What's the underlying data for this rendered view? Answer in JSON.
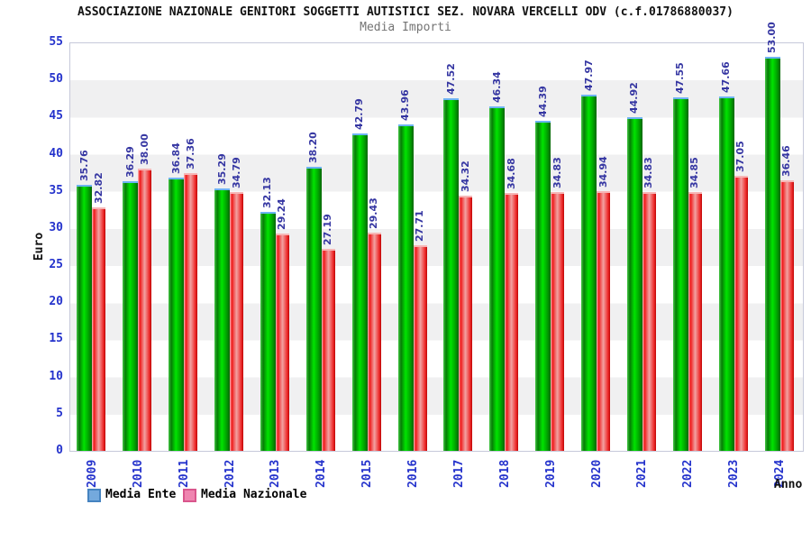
{
  "chart_data": {
    "type": "bar",
    "title": "ASSOCIAZIONE NAZIONALE GENITORI SOGGETTI AUTISTICI SEZ. NOVARA VERCELLI ODV (c.f.01786880037)",
    "subtitle": "Media Importi",
    "xlabel": "Anno",
    "ylabel": "Euro",
    "ylim": [
      0,
      55
    ],
    "ytick_step": 5,
    "grid": "alternating-horizontal-bands",
    "legend_position": "bottom",
    "categories": [
      "2009",
      "2010",
      "2011",
      "2012",
      "2013",
      "2014",
      "2015",
      "2016",
      "2017",
      "2018",
      "2019",
      "2020",
      "2021",
      "2022",
      "2023",
      "2024"
    ],
    "series": [
      {
        "name": "Media Ente",
        "bar_color": "#00c800",
        "legend_color": "#74a9dd",
        "values": [
          35.76,
          36.29,
          36.84,
          35.29,
          32.13,
          38.2,
          42.79,
          43.96,
          47.52,
          46.34,
          44.39,
          47.97,
          44.92,
          47.55,
          47.66,
          53.0
        ]
      },
      {
        "name": "Media Nazionale",
        "bar_color": "#ee3333",
        "legend_color": "#ef85b0",
        "values": [
          32.82,
          38.0,
          37.36,
          34.79,
          29.24,
          27.19,
          29.43,
          27.71,
          34.32,
          34.68,
          34.83,
          34.94,
          34.83,
          34.85,
          37.05,
          36.46
        ]
      }
    ],
    "colors": {
      "axis_tick_text": "#2533cc",
      "value_label_text": "#3536a2",
      "band_gray": "#f0f0f1",
      "green_cap": "#6db3f2",
      "red_cap": "#f6b6b6"
    }
  }
}
